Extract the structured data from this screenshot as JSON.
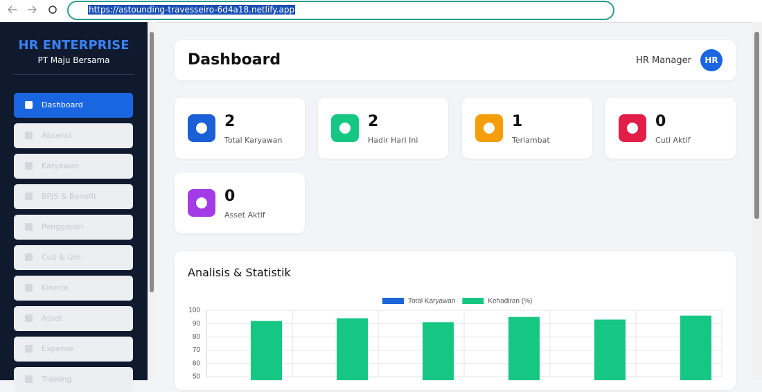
{
  "browser": {
    "url": "https://astounding-travesseiro-6d4a18.netlify.app"
  },
  "sidebar": {
    "brand": "HR ENTERPRISE",
    "company": "PT Maju Bersama",
    "menu": [
      "Dashboard",
      "Absensi",
      "Karyawan",
      "BPJS & Benefit",
      "Penggajian",
      "Cuti & Izin",
      "Kinerja",
      "Asset",
      "Expense",
      "Training"
    ]
  },
  "header": {
    "title": "Dashboard",
    "user": "HR Manager",
    "avatar": "HR"
  },
  "stats": [
    {
      "value": 2,
      "label": "Total Karyawan",
      "color": "#1a5fd6"
    },
    {
      "value": 2,
      "label": "Hadir Hari Ini",
      "color": "#16c784"
    },
    {
      "value": 1,
      "label": "Terlambat",
      "color": "#f59e0b"
    },
    {
      "value": 0,
      "label": "Cuti Aktif",
      "color": "#e11d48"
    },
    {
      "value": 0,
      "label": "Asset Aktif",
      "color": "#a33be6"
    }
  ],
  "analysis": {
    "title": "Analisis & Statistik",
    "chart": {
      "type": "bar",
      "categories": [
        null,
        null,
        null,
        null,
        null,
        null
      ],
      "series": [
        {
          "name": "Total Karyawan",
          "color": "#1a66d9"
        },
        {
          "name": "Kehadiran (%)",
          "color": "#16c784",
          "values": [
            92,
            94,
            91,
            95,
            93,
            96
          ]
        }
      ],
      "ylim": [
        50,
        100
      ],
      "yticks": [
        50,
        60,
        70,
        80,
        90,
        100
      ],
      "grid": true
    }
  }
}
